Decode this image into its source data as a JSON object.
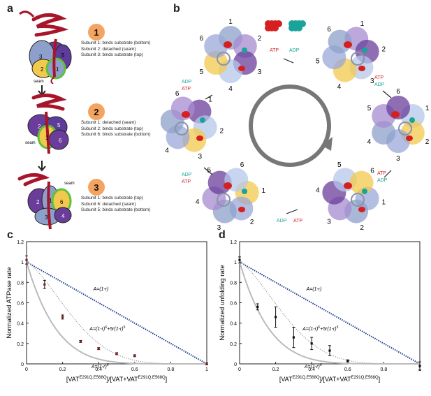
{
  "panels": {
    "a": "a",
    "b": "b",
    "c": "c",
    "d": "d"
  },
  "panel_a": {
    "steps": [
      {
        "num": "1",
        "lines": [
          "Subunit 1: binds substrate (bottom)",
          "Subunit 2: detached (seam)",
          "Subunit 3: binds substrate (top)"
        ],
        "seam": "seam",
        "subunits": [
          "3",
          "5",
          "2",
          "1"
        ]
      },
      {
        "num": "2",
        "lines": [
          "Subunit 1: detached (seam)",
          "Subunit 2: binds substrate (top)",
          "Subunit 6: binds substrate (bottom)"
        ],
        "seam": "seam",
        "subunits": [
          "2",
          "5",
          "1",
          "6"
        ]
      },
      {
        "num": "3",
        "lines": [
          "Subunit 1: binds substrate (top)",
          "Subunit 6: detached (seam)",
          "Subunit 5: binds substrate (bottom)"
        ],
        "seam": "seam",
        "subunits": [
          "2",
          "1",
          "6",
          "3",
          "4"
        ]
      }
    ]
  },
  "panel_b": {
    "atp": "ATP",
    "adp": "ADP",
    "numbers": [
      "1",
      "2",
      "3",
      "4",
      "5",
      "6"
    ]
  },
  "chart_data": [
    {
      "type": "scatter",
      "ylabel": "Normalized ATPase rate",
      "xlabel_parts": [
        "[VAT",
        "E291Q,E568Q",
        "]/[VAT+VAT",
        "E291Q,E568Q",
        "]"
      ],
      "xlim": [
        0,
        1
      ],
      "ylim": [
        0,
        1.2
      ],
      "xticks": [
        "0",
        "0.2",
        "0.4",
        "0.6",
        "0.8",
        "1"
      ],
      "yticks": [
        "0",
        "0.2",
        "0.4",
        "0.6",
        "0.8",
        "1",
        "1.2"
      ],
      "points": [
        {
          "x": 0,
          "y": 1.02,
          "err": 0.04
        },
        {
          "x": 0.1,
          "y": 0.78,
          "err": 0.04
        },
        {
          "x": 0.2,
          "y": 0.46,
          "err": 0.02
        },
        {
          "x": 0.3,
          "y": 0.22,
          "err": 0.01
        },
        {
          "x": 0.4,
          "y": 0.15,
          "err": 0.01
        },
        {
          "x": 0.5,
          "y": 0.1,
          "err": 0.01
        },
        {
          "x": 0.6,
          "y": 0.08,
          "err": 0.01
        },
        {
          "x": 1,
          "y": 0.0,
          "err": 0.01
        }
      ],
      "curves": [
        {
          "name": "A=(1-r)",
          "model": "linear",
          "color": "#1f3a93",
          "style": "dotted"
        },
        {
          "name": "A=(1-r)^6+5r(1-r)^5",
          "model": "one-tolerated",
          "color": "#999999",
          "style": "dotted"
        },
        {
          "name": "A=(1-r)^6",
          "model": "sixth",
          "color": "#bbbbbb",
          "style": "solid"
        }
      ],
      "labels": {
        "linear": "A=(1-r)",
        "one_tolerated_a": "A=(1-r)",
        "one_tolerated_b": "+5r(1-r)",
        "sixth": "A=(1-r)",
        "exp6": "6",
        "exp5": "5"
      },
      "marker_color": "#8b1a1a"
    },
    {
      "type": "scatter",
      "ylabel": "Normalized unfolding rate",
      "xlabel_parts": [
        "[VAT",
        "E291Q,E568Q",
        "]/[VAT+VAT",
        "E291Q,E568Q",
        "]"
      ],
      "xlim": [
        0,
        1
      ],
      "ylim": [
        0,
        1.2
      ],
      "xticks": [
        "0",
        "0.2",
        "0.4",
        "0.6",
        "0.8",
        "1"
      ],
      "yticks": [
        "0",
        "0.2",
        "0.4",
        "0.6",
        "0.8",
        "1",
        "1.2"
      ],
      "points": [
        {
          "x": 0,
          "y": 1.02,
          "err": 0.03
        },
        {
          "x": 0.1,
          "y": 0.56,
          "err": 0.03
        },
        {
          "x": 0.2,
          "y": 0.46,
          "err": 0.1
        },
        {
          "x": 0.3,
          "y": 0.26,
          "err": 0.1
        },
        {
          "x": 0.4,
          "y": 0.2,
          "err": 0.06
        },
        {
          "x": 0.5,
          "y": 0.13,
          "err": 0.05
        },
        {
          "x": 0.6,
          "y": 0.03,
          "err": 0.01
        },
        {
          "x": 1,
          "y": -0.02,
          "err": 0.04
        }
      ],
      "curves": [
        {
          "name": "A=(1-r)",
          "model": "linear",
          "color": "#1f3a93",
          "style": "dotted"
        },
        {
          "name": "A=(1-r)^6+5r(1-r)^5",
          "model": "one-tolerated",
          "color": "#999999",
          "style": "dotted"
        },
        {
          "name": "A=(1-r)^6",
          "model": "sixth",
          "color": "#bbbbbb",
          "style": "solid"
        }
      ],
      "labels": {
        "linear": "A=(1-r)",
        "one_tolerated_a": "A=(1-r)",
        "one_tolerated_b": "+5r(1-r)",
        "sixth": "A=(1-r)",
        "exp6": "6",
        "exp5": "5"
      },
      "marker_color": "#111111"
    }
  ]
}
